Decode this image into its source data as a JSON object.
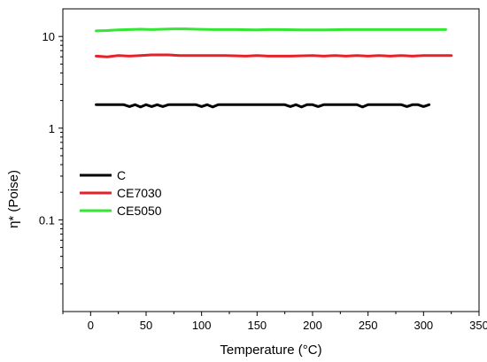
{
  "chart_data": {
    "type": "line",
    "xlabel": "Temperature (°C)",
    "ylabel": "η* (Poise)",
    "xlim": [
      -25,
      350
    ],
    "ylim": [
      0.01,
      20
    ],
    "yscale": "log",
    "xticks": [
      0,
      50,
      100,
      150,
      200,
      250,
      300,
      350
    ],
    "yticks": [
      0.1,
      1,
      10
    ],
    "xtick_labels": [
      "0",
      "50",
      "100",
      "150",
      "200",
      "250",
      "300",
      "350"
    ],
    "ytick_labels": [
      "0.1",
      "1",
      "10"
    ],
    "grid": false,
    "legend_position": "center-left",
    "series": [
      {
        "name": "C",
        "color": "#000000",
        "x": [
          5,
          25,
          30,
          35,
          40,
          45,
          50,
          55,
          60,
          65,
          70,
          95,
          100,
          105,
          110,
          115,
          120,
          175,
          180,
          185,
          190,
          195,
          200,
          205,
          210,
          240,
          245,
          250,
          280,
          285,
          290,
          295,
          300,
          305
        ],
        "y": [
          1.8,
          1.8,
          1.8,
          1.72,
          1.8,
          1.7,
          1.8,
          1.72,
          1.8,
          1.72,
          1.8,
          1.8,
          1.72,
          1.8,
          1.7,
          1.8,
          1.8,
          1.8,
          1.72,
          1.8,
          1.7,
          1.8,
          1.8,
          1.72,
          1.8,
          1.8,
          1.7,
          1.8,
          1.8,
          1.72,
          1.8,
          1.8,
          1.72,
          1.8
        ]
      },
      {
        "name": "CE7030",
        "color": "#e8202a",
        "x": [
          5,
          15,
          25,
          35,
          45,
          55,
          60,
          70,
          80,
          90,
          100,
          120,
          140,
          150,
          160,
          180,
          200,
          210,
          220,
          230,
          240,
          250,
          260,
          270,
          280,
          290,
          300,
          310,
          325
        ],
        "y": [
          6.1,
          6.0,
          6.2,
          6.1,
          6.2,
          6.3,
          6.3,
          6.3,
          6.2,
          6.2,
          6.2,
          6.2,
          6.1,
          6.2,
          6.1,
          6.1,
          6.2,
          6.1,
          6.2,
          6.1,
          6.2,
          6.1,
          6.2,
          6.1,
          6.2,
          6.1,
          6.2,
          6.2,
          6.2
        ]
      },
      {
        "name": "CE5050",
        "color": "#33e633",
        "x": [
          5,
          15,
          25,
          35,
          45,
          55,
          65,
          75,
          85,
          95,
          110,
          130,
          150,
          160,
          170,
          190,
          210,
          230,
          250,
          270,
          290,
          310,
          320
        ],
        "y": [
          11.5,
          11.6,
          11.8,
          11.9,
          12.0,
          11.9,
          12.0,
          12.1,
          12.1,
          12.0,
          11.9,
          11.9,
          11.8,
          11.9,
          11.9,
          11.8,
          11.8,
          11.9,
          11.9,
          11.9,
          11.9,
          11.9,
          11.9
        ]
      }
    ]
  }
}
